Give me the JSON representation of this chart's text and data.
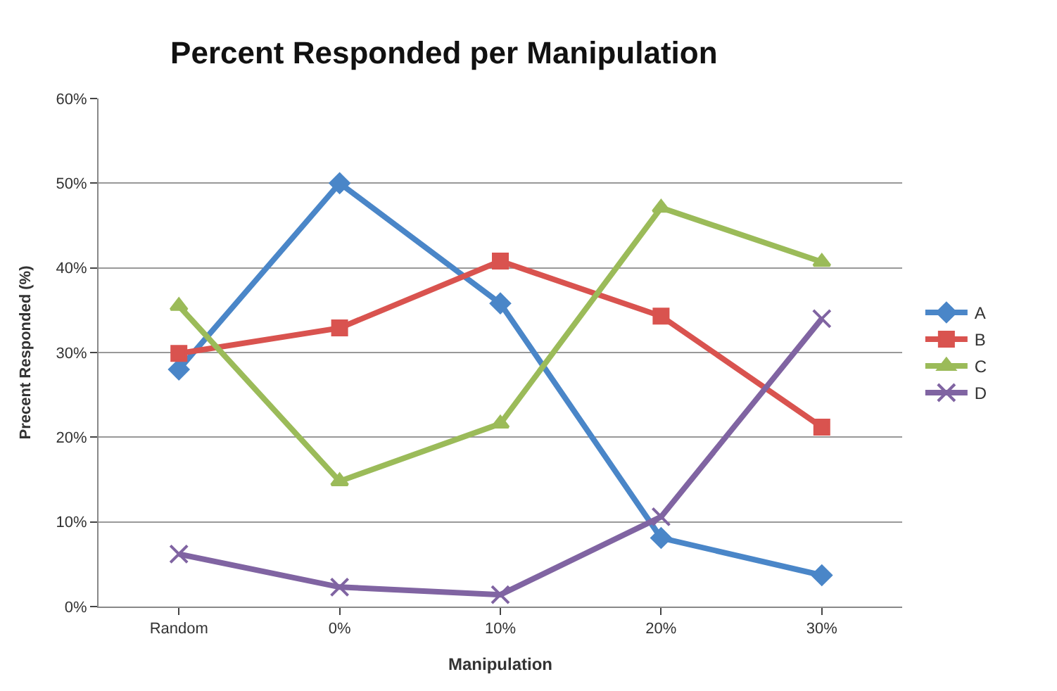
{
  "chart_data": {
    "type": "line",
    "title": "Percent Responded per Manipulation",
    "xlabel": "Manipulation",
    "ylabel": "Precent Responded (%)",
    "categories": [
      "Random",
      "0%",
      "10%",
      "20%",
      "30%"
    ],
    "series": [
      {
        "name": "A",
        "color": "#4a86c8",
        "marker": "diamond",
        "values": [
          28,
          50,
          35.8,
          8.1,
          3.7
        ]
      },
      {
        "name": "B",
        "color": "#d9534f",
        "marker": "square",
        "values": [
          29.9,
          32.9,
          40.8,
          34.3,
          21.2
        ]
      },
      {
        "name": "C",
        "color": "#9bbb59",
        "marker": "triangle",
        "values": [
          35.5,
          14.8,
          21.6,
          47.1,
          40.7
        ]
      },
      {
        "name": "D",
        "color": "#8064a2",
        "marker": "cross",
        "values": [
          6.2,
          2.3,
          1.4,
          10.6,
          34.0
        ]
      }
    ],
    "ylim": [
      0,
      60
    ],
    "yticks": [
      {
        "value": 0,
        "label": "0%"
      },
      {
        "value": 10,
        "label": "10%"
      },
      {
        "value": 20,
        "label": "20%"
      },
      {
        "value": 30,
        "label": "30%"
      },
      {
        "value": 40,
        "label": "40%"
      },
      {
        "value": 50,
        "label": "50%"
      },
      {
        "value": 60,
        "label": "60%"
      }
    ],
    "grid": "y",
    "legend": "right",
    "line_style": "solid"
  }
}
